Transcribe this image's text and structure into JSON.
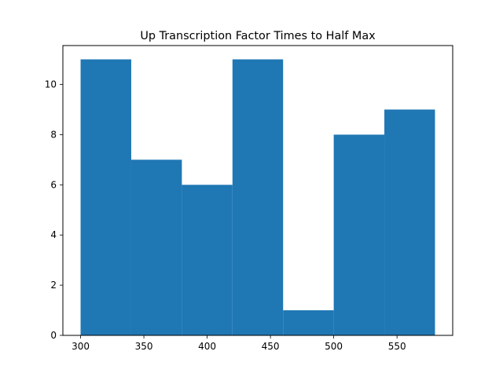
{
  "chart_data": {
    "type": "bar",
    "title": "Up Transcription Factor Times to Half Max",
    "xlabel": "",
    "ylabel": "",
    "bins": [
      {
        "x0": 300,
        "x1": 340,
        "value": 11
      },
      {
        "x0": 340,
        "x1": 380,
        "value": 7
      },
      {
        "x0": 380,
        "x1": 420,
        "value": 6
      },
      {
        "x0": 420,
        "x1": 460,
        "value": 11
      },
      {
        "x0": 460,
        "x1": 500,
        "value": 1
      },
      {
        "x0": 500,
        "x1": 540,
        "value": 8
      },
      {
        "x0": 540,
        "x1": 580,
        "value": 9
      }
    ],
    "xlim": [
      286,
      594
    ],
    "ylim": [
      0,
      11.55
    ],
    "xticks": [
      300,
      350,
      400,
      450,
      500,
      550
    ],
    "yticks": [
      0,
      2,
      4,
      6,
      8,
      10
    ],
    "grid": false,
    "bar_color": "#1f77b4"
  }
}
